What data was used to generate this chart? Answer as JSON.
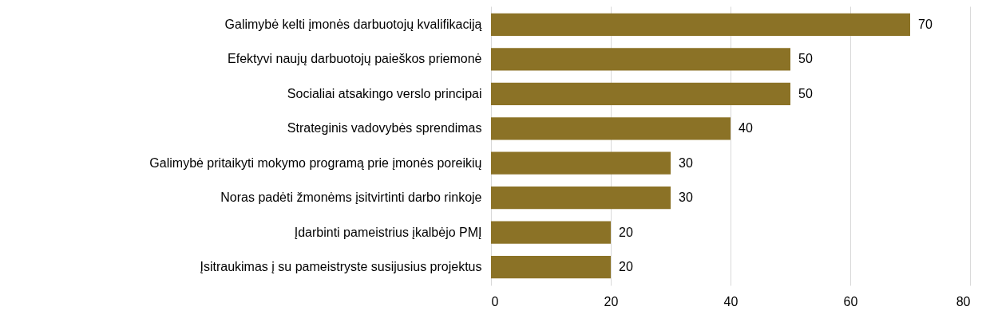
{
  "chart_data": {
    "type": "bar",
    "orientation": "horizontal",
    "categories": [
      "Galimybė kelti įmonės darbuotojų kvalifikaciją",
      "Efektyvi naujų darbuotojų paieškos priemonė",
      "Socialiai atsakingo verslo principai",
      "Strateginis vadovybės sprendimas",
      "Galimybė pritaikyti mokymo programą prie įmonės poreikių",
      "Noras padėti žmonėms įsitvirtinti darbo rinkoje",
      "Įdarbinti pameistrius įkalbėjo PMĮ",
      "Įsitraukimas į su pameistryste susijusius projektus"
    ],
    "values": [
      70,
      50,
      50,
      40,
      30,
      30,
      20,
      20
    ],
    "color": "#8b7226",
    "xlim": [
      0,
      80
    ],
    "xticks": [
      0,
      20,
      40,
      60,
      80
    ],
    "grid": "x",
    "data_labels": true
  }
}
